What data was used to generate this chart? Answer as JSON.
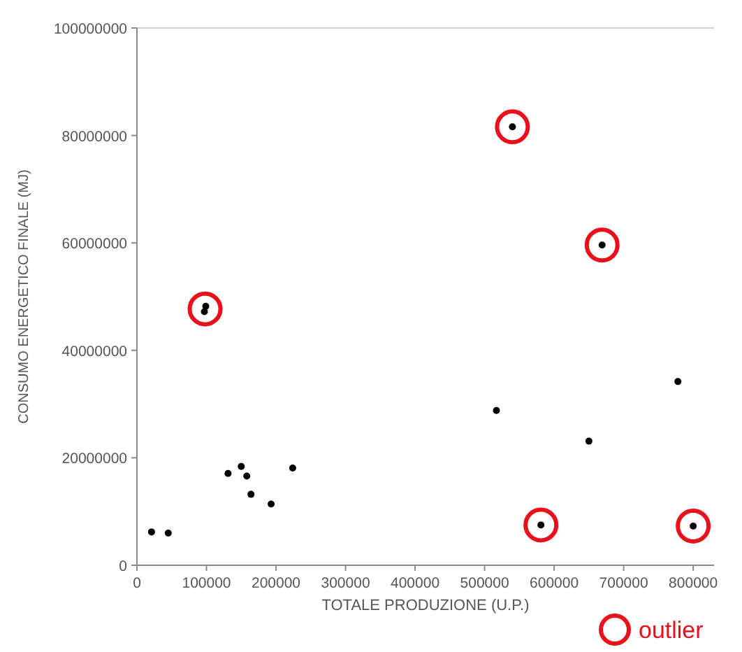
{
  "chart_data": {
    "type": "scatter",
    "xlabel": "TOTALE PRODUZIONE (U.P.)",
    "ylabel": "CONSUMO ENERGETICO FINALE (MJ)",
    "xlim": [
      0,
      830000
    ],
    "ylim": [
      0,
      100000000
    ],
    "xticks": [
      0,
      100000,
      200000,
      300000,
      400000,
      500000,
      600000,
      700000,
      800000
    ],
    "yticks": [
      0,
      20000000,
      40000000,
      60000000,
      80000000,
      100000000
    ],
    "grid": false,
    "legend": "bottom right",
    "marker": "circle",
    "series": [
      {
        "color": "#000000",
        "x": [
          21000,
          45000,
          97000,
          99000,
          131000,
          150000,
          158000,
          164000,
          193000,
          224000,
          517000,
          540000,
          581000,
          650000,
          669000,
          778000,
          800000
        ],
        "values": [
          6200000,
          6000000,
          47200000,
          48200000,
          17100000,
          18400000,
          16600000,
          13200000,
          11400000,
          18100000,
          28800000,
          81600000,
          7500000,
          23100000,
          59600000,
          34200000,
          7300000
        ]
      },
      {
        "name": "outlier",
        "color": "#e8101a",
        "x": [
          98000,
          540000,
          581000,
          669000,
          800000
        ],
        "values": [
          47700000,
          81600000,
          7500000,
          59600000,
          7300000
        ]
      }
    ]
  }
}
